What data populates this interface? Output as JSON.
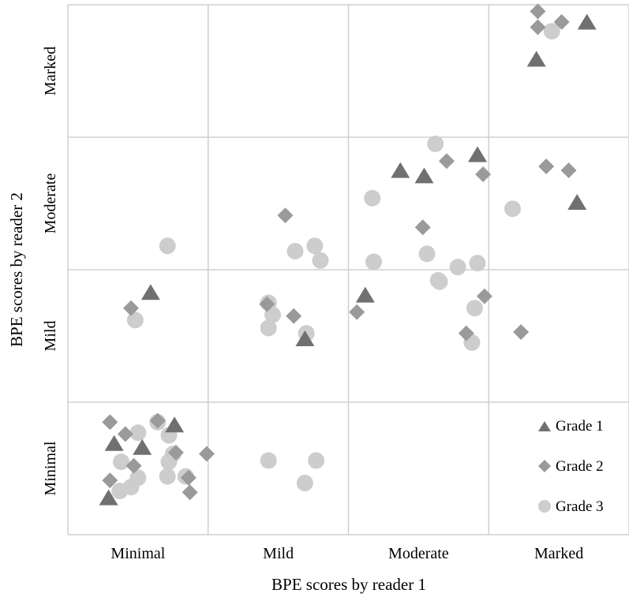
{
  "chart_data": {
    "type": "scatter",
    "title": "",
    "xlabel": "BPE scores by reader 1",
    "ylabel": "BPE scores by reader 2",
    "x_categories": [
      "Minimal",
      "Mild",
      "Moderate",
      "Marked"
    ],
    "y_categories": [
      "Minimal",
      "Mild",
      "Moderate",
      "Marked"
    ],
    "xlim": [
      0.5,
      4.5
    ],
    "ylim": [
      0.5,
      4.5
    ],
    "grid": true,
    "legend_position": "bottom-right",
    "colors": {
      "grade1": "#707070",
      "grade2": "#9a9a9a",
      "grade3": "#cdcdcd",
      "grid": "#d0d0d0"
    },
    "series": [
      {
        "name": "Grade 1",
        "marker": "triangle",
        "points": [
          [
            4.2,
            4.36
          ],
          [
            3.84,
            4.08
          ],
          [
            3.42,
            3.36
          ],
          [
            2.87,
            3.24
          ],
          [
            3.04,
            3.2
          ],
          [
            4.13,
            3.0
          ],
          [
            1.09,
            2.32
          ],
          [
            2.62,
            2.3
          ],
          [
            2.19,
            1.97
          ],
          [
            1.26,
            1.32
          ],
          [
            1.03,
            1.15
          ],
          [
            0.83,
            1.18
          ],
          [
            0.79,
            0.77
          ]
        ]
      },
      {
        "name": "Grade 2",
        "marker": "diamond",
        "points": [
          [
            3.85,
            4.45
          ],
          [
            4.02,
            4.37
          ],
          [
            3.85,
            4.33
          ],
          [
            3.2,
            3.32
          ],
          [
            3.46,
            3.22
          ],
          [
            4.07,
            3.25
          ],
          [
            3.91,
            3.28
          ],
          [
            2.05,
            2.91
          ],
          [
            3.03,
            2.82
          ],
          [
            0.95,
            2.21
          ],
          [
            1.92,
            2.24
          ],
          [
            2.11,
            2.15
          ],
          [
            2.56,
            2.18
          ],
          [
            3.34,
            2.02
          ],
          [
            3.73,
            2.03
          ],
          [
            3.47,
            2.3
          ],
          [
            0.8,
            1.35
          ],
          [
            1.14,
            1.36
          ],
          [
            0.91,
            1.26
          ],
          [
            1.27,
            1.12
          ],
          [
            1.37,
            0.82
          ],
          [
            1.49,
            1.11
          ],
          [
            0.8,
            0.91
          ],
          [
            0.97,
            1.02
          ],
          [
            1.36,
            0.93
          ]
        ]
      },
      {
        "name": "Grade 3",
        "marker": "circle",
        "points": [
          [
            3.95,
            4.3
          ],
          [
            3.12,
            3.45
          ],
          [
            2.67,
            3.04
          ],
          [
            3.67,
            2.96
          ],
          [
            1.21,
            2.68
          ],
          [
            2.12,
            2.64
          ],
          [
            2.26,
            2.68
          ],
          [
            2.3,
            2.57
          ],
          [
            2.68,
            2.56
          ],
          [
            3.06,
            2.62
          ],
          [
            3.42,
            2.55
          ],
          [
            3.28,
            2.52
          ],
          [
            0.98,
            2.12
          ],
          [
            1.93,
            2.25
          ],
          [
            1.93,
            2.06
          ],
          [
            1.96,
            2.16
          ],
          [
            2.2,
            2.02
          ],
          [
            3.14,
            2.42
          ],
          [
            3.15,
            2.41
          ],
          [
            3.4,
            2.21
          ],
          [
            3.38,
            1.95
          ],
          [
            1.14,
            1.35
          ],
          [
            1.0,
            1.27
          ],
          [
            1.22,
            1.25
          ],
          [
            1.25,
            1.11
          ],
          [
            0.88,
            1.05
          ],
          [
            1.0,
            0.93
          ],
          [
            1.22,
            1.05
          ],
          [
            0.87,
            0.83
          ],
          [
            0.95,
            0.86
          ],
          [
            1.21,
            0.94
          ],
          [
            1.34,
            0.94
          ],
          [
            1.93,
            1.06
          ],
          [
            2.19,
            0.89
          ],
          [
            2.27,
            1.06
          ]
        ]
      }
    ]
  }
}
